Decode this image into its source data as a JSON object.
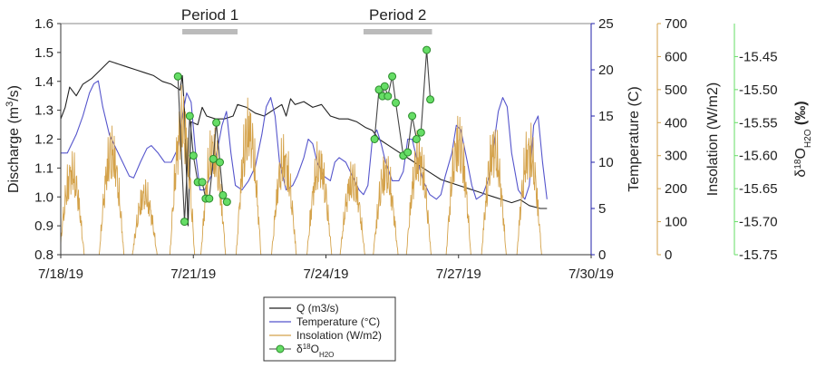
{
  "chart_data": {
    "type": "line",
    "x_range": [
      "7/18/19",
      "7/30/19"
    ],
    "x_ticks": [
      "7/18/19",
      "7/21/19",
      "7/24/19",
      "7/27/19",
      "7/30/19"
    ],
    "axes": {
      "discharge": {
        "label": "Discharge (m³/s)",
        "lim": [
          0.8,
          1.6
        ],
        "ticks": [
          "0.8",
          "0.9",
          "1.0",
          "1.1",
          "1.2",
          "1.3",
          "1.4",
          "1.5",
          "1.6"
        ],
        "color": "#222222"
      },
      "temperature": {
        "label": "Temperature (C)",
        "lim": [
          0,
          25
        ],
        "ticks": [
          "0",
          "5",
          "10",
          "15",
          "20",
          "25"
        ],
        "color": "#2222aa"
      },
      "insolation": {
        "label": "Insolation (W/m2)",
        "lim": [
          0,
          700
        ],
        "ticks": [
          "0",
          "100",
          "200",
          "300",
          "400",
          "500",
          "600",
          "700"
        ],
        "color": "#d4a24a"
      },
      "isotope": {
        "label_prefix": "δ",
        "label_sup": "18",
        "label_mid": "O",
        "label_sub": "H2O",
        "label_unit": "(‰)",
        "lim": [
          -15.75,
          -15.4
        ],
        "ticks": [
          "-15.45",
          "-15.50",
          "-15.55",
          "-15.60",
          "-15.65",
          "-15.70",
          "-15.75"
        ],
        "color": "#66dd66"
      }
    },
    "periods": [
      {
        "label": "Period 1",
        "start_day": 2.75,
        "end_day": 4.0
      },
      {
        "label": "Period 2",
        "start_day": 6.85,
        "end_day": 8.4
      }
    ],
    "series": [
      {
        "name": "Q (m3/s)",
        "axis": "discharge",
        "color": "#222222",
        "points": [
          [
            0.0,
            1.27
          ],
          [
            0.1,
            1.31
          ],
          [
            0.2,
            1.38
          ],
          [
            0.35,
            1.35
          ],
          [
            0.5,
            1.39
          ],
          [
            0.7,
            1.41
          ],
          [
            0.9,
            1.44
          ],
          [
            1.1,
            1.47
          ],
          [
            1.3,
            1.46
          ],
          [
            1.5,
            1.45
          ],
          [
            1.7,
            1.44
          ],
          [
            1.9,
            1.43
          ],
          [
            2.1,
            1.42
          ],
          [
            2.3,
            1.4
          ],
          [
            2.5,
            1.39
          ],
          [
            2.7,
            1.37
          ],
          [
            2.75,
            1.42
          ],
          [
            2.8,
            1.3
          ],
          [
            2.88,
            0.9
          ],
          [
            2.95,
            1.26
          ],
          [
            3.1,
            1.25
          ],
          [
            3.2,
            1.31
          ],
          [
            3.3,
            1.28
          ],
          [
            3.5,
            1.27
          ],
          [
            3.7,
            1.27
          ],
          [
            3.9,
            1.28
          ],
          [
            4.0,
            1.32
          ],
          [
            4.2,
            1.31
          ],
          [
            4.4,
            1.29
          ],
          [
            4.6,
            1.28
          ],
          [
            4.8,
            1.3
          ],
          [
            5.0,
            1.32
          ],
          [
            5.1,
            1.28
          ],
          [
            5.2,
            1.34
          ],
          [
            5.3,
            1.32
          ],
          [
            5.5,
            1.33
          ],
          [
            5.7,
            1.31
          ],
          [
            5.9,
            1.32
          ],
          [
            6.1,
            1.28
          ],
          [
            6.3,
            1.27
          ],
          [
            6.5,
            1.27
          ],
          [
            6.7,
            1.26
          ],
          [
            6.9,
            1.24
          ],
          [
            7.05,
            1.23
          ],
          [
            7.2,
            1.2
          ],
          [
            7.4,
            1.18
          ],
          [
            7.6,
            1.16
          ],
          [
            7.8,
            1.14
          ],
          [
            8.0,
            1.12
          ],
          [
            8.2,
            1.1
          ],
          [
            8.4,
            1.08
          ],
          [
            8.6,
            1.06
          ],
          [
            8.8,
            1.05
          ],
          [
            9.0,
            1.04
          ],
          [
            9.2,
            1.03
          ],
          [
            9.4,
            1.02
          ],
          [
            9.6,
            1.01
          ],
          [
            9.8,
            1.0
          ],
          [
            10.0,
            0.99
          ],
          [
            10.2,
            0.98
          ],
          [
            10.4,
            0.99
          ],
          [
            10.6,
            0.97
          ],
          [
            10.85,
            0.96
          ],
          [
            11.0,
            0.96
          ]
        ]
      },
      {
        "name": "Temperature (°C)",
        "axis": "temperature",
        "color": "#5555cc",
        "points": [
          [
            0.0,
            11.0
          ],
          [
            0.15,
            11.0
          ],
          [
            0.35,
            13.0
          ],
          [
            0.5,
            15.0
          ],
          [
            0.65,
            17.5
          ],
          [
            0.75,
            18.5
          ],
          [
            0.85,
            18.8
          ],
          [
            0.95,
            16.0
          ],
          [
            1.1,
            13.0
          ],
          [
            1.25,
            11.5
          ],
          [
            1.4,
            10.0
          ],
          [
            1.55,
            8.5
          ],
          [
            1.65,
            8.3
          ],
          [
            1.8,
            10.0
          ],
          [
            1.95,
            11.5
          ],
          [
            2.05,
            11.8
          ],
          [
            2.2,
            11.0
          ],
          [
            2.35,
            10.0
          ],
          [
            2.5,
            10.0
          ],
          [
            2.65,
            11.5
          ],
          [
            2.75,
            15.0
          ],
          [
            2.85,
            17.5
          ],
          [
            2.95,
            16.5
          ],
          [
            3.05,
            11.0
          ],
          [
            3.15,
            7.0
          ],
          [
            3.25,
            7.0
          ],
          [
            3.4,
            8.5
          ],
          [
            3.55,
            11.5
          ],
          [
            3.65,
            14.0
          ],
          [
            3.75,
            15.5
          ],
          [
            3.85,
            11.0
          ],
          [
            3.95,
            7.5
          ],
          [
            4.1,
            7.0
          ],
          [
            4.25,
            8.0
          ],
          [
            4.4,
            9.5
          ],
          [
            4.55,
            13.0
          ],
          [
            4.65,
            16.0
          ],
          [
            4.75,
            17.0
          ],
          [
            4.85,
            15.0
          ],
          [
            4.95,
            10.0
          ],
          [
            5.1,
            7.0
          ],
          [
            5.25,
            7.5
          ],
          [
            5.35,
            8.5
          ],
          [
            5.5,
            10.5
          ],
          [
            5.6,
            12.5
          ],
          [
            5.7,
            12.0
          ],
          [
            5.8,
            10.0
          ],
          [
            5.95,
            8.5
          ],
          [
            6.1,
            8.0
          ],
          [
            6.2,
            10.0
          ],
          [
            6.3,
            10.5
          ],
          [
            6.45,
            10.0
          ],
          [
            6.6,
            8.5
          ],
          [
            6.75,
            7.0
          ],
          [
            6.85,
            6.5
          ],
          [
            6.95,
            7.5
          ],
          [
            7.05,
            12.5
          ],
          [
            7.15,
            13.5
          ],
          [
            7.25,
            12.0
          ],
          [
            7.35,
            10.0
          ],
          [
            7.5,
            8.0
          ],
          [
            7.65,
            8.0
          ],
          [
            7.75,
            9.0
          ],
          [
            7.85,
            12.5
          ],
          [
            7.95,
            12.5
          ],
          [
            8.05,
            10.5
          ],
          [
            8.2,
            8.0
          ],
          [
            8.35,
            6.5
          ],
          [
            8.5,
            6.0
          ],
          [
            8.6,
            6.5
          ],
          [
            8.7,
            8.5
          ],
          [
            8.85,
            11.0
          ],
          [
            8.95,
            14.0
          ],
          [
            9.05,
            13.5
          ],
          [
            9.2,
            10.0
          ],
          [
            9.3,
            7.5
          ],
          [
            9.4,
            6.0
          ],
          [
            9.55,
            6.5
          ],
          [
            9.7,
            8.5
          ],
          [
            9.8,
            12.0
          ],
          [
            9.9,
            15.5
          ],
          [
            10.0,
            17.0
          ],
          [
            10.1,
            16.0
          ],
          [
            10.2,
            11.0
          ],
          [
            10.35,
            7.0
          ],
          [
            10.5,
            6.0
          ],
          [
            10.6,
            7.5
          ],
          [
            10.7,
            14.0
          ],
          [
            10.8,
            15.0
          ],
          [
            10.9,
            10.0
          ],
          [
            11.0,
            6.0
          ]
        ]
      },
      {
        "name": "Insolation (W/m2)",
        "axis": "insolation",
        "color": "#d4a24a",
        "days": [
          {
            "center": 0.25,
            "peak": 330
          },
          {
            "center": 1.15,
            "peak": 410
          },
          {
            "center": 1.9,
            "peak": 240
          },
          {
            "center": 2.75,
            "peak": 520
          },
          {
            "center": 3.45,
            "peak": 420
          },
          {
            "center": 4.25,
            "peak": 500
          },
          {
            "center": 5.05,
            "peak": 380
          },
          {
            "center": 5.85,
            "peak": 360
          },
          {
            "center": 6.6,
            "peak": 300
          },
          {
            "center": 7.35,
            "peak": 330
          },
          {
            "center": 8.1,
            "peak": 390
          },
          {
            "center": 9.0,
            "peak": 450
          },
          {
            "center": 9.8,
            "peak": 420
          },
          {
            "center": 10.6,
            "peak": 420
          }
        ]
      },
      {
        "name": "δ18OH2O",
        "axis": "isotope",
        "color": "#66dd66",
        "marker": "circle",
        "points": [
          [
            2.65,
            -15.48
          ],
          [
            2.8,
            -15.7
          ],
          [
            2.92,
            -15.54
          ],
          [
            3.0,
            -15.6
          ],
          [
            3.1,
            -15.64
          ],
          [
            3.2,
            -15.64
          ],
          [
            3.28,
            -15.665
          ],
          [
            3.36,
            -15.665
          ],
          [
            3.45,
            -15.605
          ],
          [
            3.52,
            -15.55
          ],
          [
            3.6,
            -15.61
          ],
          [
            3.67,
            -15.66
          ],
          [
            3.76,
            -15.67
          ],
          [
            7.1,
            -15.575
          ],
          [
            7.2,
            -15.5
          ],
          [
            7.28,
            -15.51
          ],
          [
            7.33,
            -15.495
          ],
          [
            7.4,
            -15.51
          ],
          [
            7.5,
            -15.48
          ],
          [
            7.58,
            -15.52
          ],
          [
            7.75,
            -15.6
          ],
          [
            7.85,
            -15.595
          ],
          [
            7.95,
            -15.54
          ],
          [
            8.05,
            -15.575
          ],
          [
            8.15,
            -15.565
          ],
          [
            8.28,
            -15.44
          ],
          [
            8.36,
            -15.515
          ]
        ]
      }
    ],
    "legend": {
      "placement": "bottom-center",
      "entries": [
        {
          "label": "Q (m3/s)"
        },
        {
          "label": "Temperature (°C)"
        },
        {
          "label": "Insolation (W/m2)"
        },
        {
          "label_prefix": "δ",
          "label_sup": "18",
          "label_mid": "O",
          "label_sub": "H2O"
        }
      ]
    }
  }
}
